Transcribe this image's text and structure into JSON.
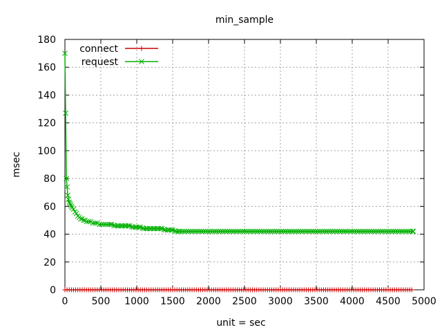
{
  "chart_data": {
    "type": "line",
    "title": "min_sample",
    "xlabel": "unit = sec",
    "ylabel": "msec",
    "xlim": [
      0,
      5000
    ],
    "ylim": [
      0,
      180
    ],
    "xticks": [
      0,
      500,
      1000,
      1500,
      2000,
      2500,
      3000,
      3500,
      4000,
      4500,
      5000
    ],
    "yticks": [
      0,
      20,
      40,
      60,
      80,
      100,
      120,
      140,
      160,
      180
    ],
    "xtick_labels": [
      "0",
      "500",
      "1000",
      "1500",
      "2000",
      "2500",
      "3000",
      "3500",
      "4000",
      "4500",
      "5000"
    ],
    "ytick_labels": [
      "0",
      "20",
      "40",
      "60",
      "80",
      "100",
      "120",
      "140",
      "160",
      "180"
    ],
    "grid": true,
    "legend_position": "top-left",
    "series": [
      {
        "name": "connect",
        "color": "#cc0000",
        "marker": "plus",
        "x_start": 0,
        "x_end": 4850,
        "x_step": 30,
        "constant_value": 0
      },
      {
        "name": "request",
        "color": "#00b000",
        "marker": "cross",
        "x": [
          0,
          10,
          20,
          30,
          40,
          50,
          60,
          70,
          80,
          90,
          100,
          120,
          140,
          160,
          180,
          200,
          220,
          240,
          260,
          280,
          300,
          330,
          360,
          390,
          420,
          450,
          480,
          510,
          540,
          570,
          600,
          650,
          700,
          750,
          800,
          850,
          900,
          950,
          1000,
          1050,
          1100,
          1150,
          1200,
          1250,
          1300,
          1350,
          1400,
          1450,
          1500,
          1550,
          1600,
          4850
        ],
        "y": [
          170,
          127,
          80,
          74,
          68,
          65,
          63,
          62,
          61,
          60,
          59,
          58,
          56,
          55,
          53,
          52,
          51,
          51,
          50,
          50,
          49,
          49,
          49,
          48,
          48,
          48,
          47,
          47,
          47,
          47,
          47,
          47,
          46,
          46,
          46,
          46,
          46,
          45,
          45,
          45,
          44,
          44,
          44,
          44,
          44,
          44,
          43,
          43,
          43,
          42,
          42,
          42
        ]
      }
    ]
  }
}
